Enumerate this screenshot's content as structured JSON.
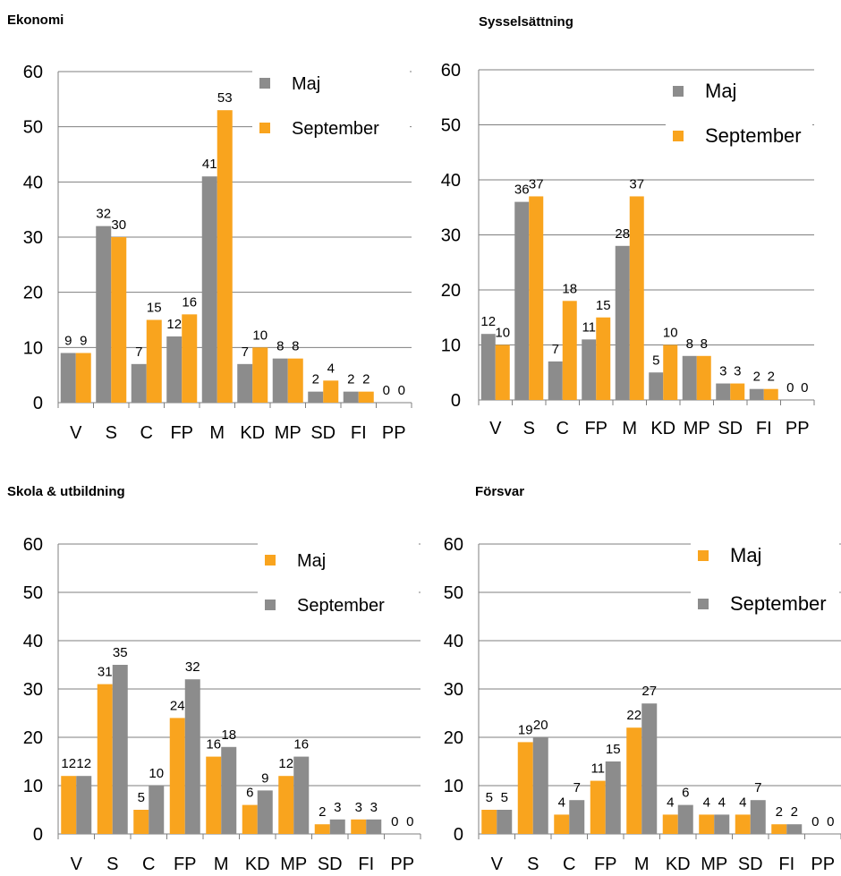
{
  "charts": [
    {
      "title": "Ekonomi",
      "legend": [
        "Maj",
        "September"
      ],
      "colors": [
        "#8c8c8c",
        "#f9a41e"
      ]
    },
    {
      "title": "Sysselsättning",
      "legend": [
        "Maj",
        "September"
      ],
      "colors": [
        "#8c8c8c",
        "#f9a41e"
      ]
    },
    {
      "title": "Skola & utbildning",
      "legend": [
        "Maj",
        "September"
      ],
      "colors": [
        "#f9a41e",
        "#8c8c8c"
      ]
    },
    {
      "title": "Försvar",
      "legend": [
        "Maj",
        "September"
      ],
      "colors": [
        "#f9a41e",
        "#8c8c8c"
      ]
    }
  ],
  "chart_data": [
    {
      "type": "bar",
      "title": "Ekonomi",
      "categories": [
        "V",
        "S",
        "C",
        "FP",
        "M",
        "KD",
        "MP",
        "SD",
        "FI",
        "PP"
      ],
      "series": [
        {
          "name": "Maj",
          "values": [
            9,
            32,
            7,
            12,
            41,
            7,
            8,
            2,
            2,
            0
          ]
        },
        {
          "name": "September",
          "values": [
            9,
            30,
            15,
            16,
            53,
            10,
            8,
            4,
            2,
            0
          ]
        }
      ],
      "yticks": [
        "0",
        "10",
        "20",
        "30",
        "40",
        "50",
        "60"
      ],
      "ylim": [
        0,
        60
      ],
      "grid": true,
      "legend_position": "top-right"
    },
    {
      "type": "bar",
      "title": "Sysselsättning",
      "categories": [
        "V",
        "S",
        "C",
        "FP",
        "M",
        "KD",
        "MP",
        "SD",
        "FI",
        "PP"
      ],
      "series": [
        {
          "name": "Maj",
          "values": [
            12,
            36,
            7,
            11,
            28,
            5,
            8,
            3,
            2,
            0
          ]
        },
        {
          "name": "September",
          "values": [
            10,
            37,
            18,
            15,
            37,
            10,
            8,
            3,
            2,
            0
          ]
        }
      ],
      "yticks": [
        "0",
        "10",
        "20",
        "30",
        "40",
        "50",
        "60"
      ],
      "ylim": [
        0,
        60
      ],
      "grid": true,
      "legend_position": "top-right"
    },
    {
      "type": "bar",
      "title": "Skola & utbildning",
      "categories": [
        "V",
        "S",
        "C",
        "FP",
        "M",
        "KD",
        "MP",
        "SD",
        "FI",
        "PP"
      ],
      "series": [
        {
          "name": "Maj",
          "values": [
            12,
            31,
            5,
            24,
            16,
            6,
            12,
            2,
            3,
            0
          ]
        },
        {
          "name": "September",
          "values": [
            12,
            35,
            10,
            32,
            18,
            9,
            16,
            3,
            3,
            0
          ]
        }
      ],
      "yticks": [
        "0",
        "10",
        "20",
        "30",
        "40",
        "50",
        "60"
      ],
      "ylim": [
        0,
        60
      ],
      "grid": true,
      "legend_position": "top-right"
    },
    {
      "type": "bar",
      "title": "Försvar",
      "categories": [
        "V",
        "S",
        "C",
        "FP",
        "M",
        "KD",
        "MP",
        "SD",
        "FI",
        "PP"
      ],
      "series": [
        {
          "name": "Maj",
          "values": [
            5,
            19,
            4,
            11,
            22,
            4,
            4,
            4,
            2,
            0
          ]
        },
        {
          "name": "September",
          "values": [
            5,
            20,
            7,
            15,
            27,
            6,
            4,
            7,
            2,
            0
          ]
        }
      ],
      "yticks": [
        "0",
        "10",
        "20",
        "30",
        "40",
        "50",
        "60"
      ],
      "ylim": [
        0,
        60
      ],
      "grid": true,
      "legend_position": "top-right"
    }
  ]
}
